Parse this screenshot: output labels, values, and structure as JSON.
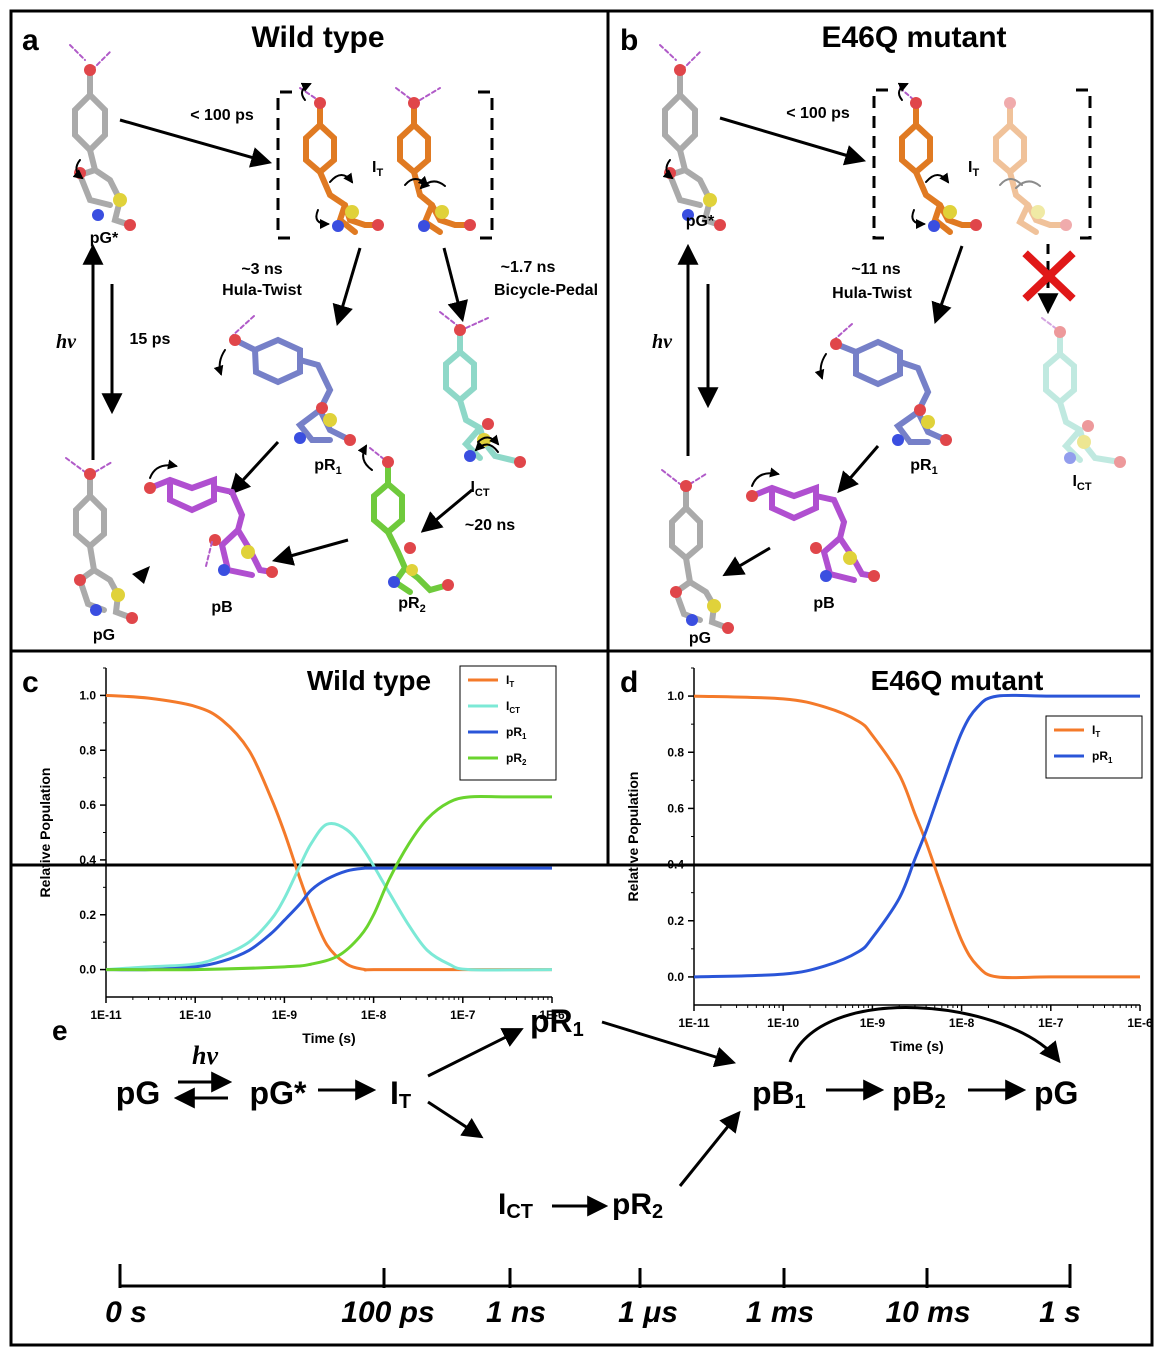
{
  "panels": {
    "a": {
      "letter": "a",
      "title": "Wild type"
    },
    "b": {
      "letter": "b",
      "title": "E46Q mutant"
    },
    "c": {
      "letter": "c"
    },
    "d": {
      "letter": "d"
    },
    "e": {
      "letter": "e"
    }
  },
  "scheme_a": {
    "hv": "hν",
    "t_fast": "< 100 ps",
    "t_15": "15 ps",
    "t_hula": "~3 ns",
    "hula": "Hula-Twist",
    "t_bp": "~1.7 ns",
    "bp": "Bicycle-Pedal",
    "t_20": "~20 ns",
    "species": {
      "pG_star": "pG*",
      "IT": "I",
      "IT_sub": "T",
      "ICT": "I",
      "ICT_sub": "CT",
      "pR1": "pR",
      "pR1_sub": "1",
      "pR2": "pR",
      "pR2_sub": "2",
      "pB": "pB",
      "pG": "pG"
    }
  },
  "scheme_b": {
    "hv": "hν",
    "t_fast": "< 100 ps",
    "t_hula": "~11 ns",
    "hula": "Hula-Twist",
    "species": {
      "pG_star": "pG*",
      "IT": "I",
      "IT_sub": "T",
      "ICT": "I",
      "ICT_sub": "CT",
      "pR1": "pR",
      "pR1_sub": "1",
      "pB": "pB",
      "pG": "pG"
    }
  },
  "colors": {
    "IT": "#f47a2a",
    "ICT": "#7ce9d6",
    "pR1": "#2a55d8",
    "pR2": "#6ad42e",
    "pB_mol": "#b04fd0",
    "pR1_mol": "#7680c8",
    "IT_mol": "#e07a22",
    "pR2_mol": "#6fca3c",
    "ICT_mol": "#8ed8c8",
    "pG_mol": "#c8c8c8",
    "red_x": "#e01818"
  },
  "chart_data": [
    {
      "type": "line",
      "panel": "c",
      "title": "Wild type",
      "xlabel": "Time (s)",
      "ylabel": "Relative Population",
      "xscale": "log",
      "xlim": [
        1e-11,
        1e-06
      ],
      "ylim": [
        -0.1,
        1.1
      ],
      "xticks": [
        "1E-11",
        "1E-10",
        "1E-9",
        "1E-8",
        "1E-7",
        "1E-6"
      ],
      "yticks": [
        "0.0",
        "0.2",
        "0.4",
        "0.6",
        "0.8",
        "1.0"
      ],
      "legend_position": "top-right",
      "series": [
        {
          "name": "I",
          "sub": "T",
          "color": "#f47a2a",
          "x": [
            1e-11,
            3e-11,
            1e-10,
            2e-10,
            4e-10,
            7e-10,
            1e-09,
            1.5e-09,
            2e-09,
            3e-09,
            5e-09,
            8e-09,
            1e-08,
            1e-07,
            1e-06
          ],
          "y": [
            1.0,
            0.99,
            0.96,
            0.91,
            0.8,
            0.63,
            0.5,
            0.33,
            0.22,
            0.09,
            0.02,
            0.0,
            0.0,
            0.0,
            0.0
          ]
        },
        {
          "name": "I",
          "sub": "CT",
          "color": "#7ce9d6",
          "x": [
            1e-11,
            3e-11,
            1e-10,
            2e-10,
            4e-10,
            7e-10,
            1e-09,
            1.5e-09,
            2e-09,
            3e-09,
            5e-09,
            8e-09,
            1.5e-08,
            2.5e-08,
            4e-08,
            7e-08,
            1.2e-07,
            1e-06
          ],
          "y": [
            0.0,
            0.01,
            0.02,
            0.05,
            0.1,
            0.18,
            0.26,
            0.38,
            0.46,
            0.53,
            0.51,
            0.43,
            0.28,
            0.16,
            0.07,
            0.02,
            0.0,
            0.0
          ]
        },
        {
          "name": "pR",
          "sub": "1",
          "color": "#2a55d8",
          "x": [
            1e-11,
            3e-11,
            1e-10,
            2e-10,
            4e-10,
            7e-10,
            1e-09,
            1.5e-09,
            2e-09,
            3e-09,
            5e-09,
            8e-09,
            1e-08,
            1e-07,
            1e-06
          ],
          "y": [
            0.0,
            0.0,
            0.01,
            0.03,
            0.07,
            0.13,
            0.18,
            0.24,
            0.29,
            0.33,
            0.36,
            0.37,
            0.37,
            0.37,
            0.37
          ]
        },
        {
          "name": "pR",
          "sub": "2",
          "color": "#6ad42e",
          "x": [
            1e-11,
            1e-10,
            1e-09,
            2e-09,
            4e-09,
            7e-09,
            1e-08,
            1.5e-08,
            2.5e-08,
            4e-08,
            7e-08,
            1.2e-07,
            3e-07,
            1e-06
          ],
          "y": [
            0.0,
            0.0,
            0.01,
            0.02,
            0.05,
            0.12,
            0.2,
            0.33,
            0.46,
            0.55,
            0.61,
            0.63,
            0.63,
            0.63
          ]
        }
      ]
    },
    {
      "type": "line",
      "panel": "d",
      "title": "E46Q mutant",
      "xlabel": "Time (s)",
      "ylabel": "Relative Population",
      "xscale": "log",
      "xlim": [
        1e-11,
        1e-06
      ],
      "ylim": [
        -0.1,
        1.1
      ],
      "xticks": [
        "1E-11",
        "1E-10",
        "1E-9",
        "1E-8",
        "1E-7",
        "1E-6"
      ],
      "yticks": [
        "0.0",
        "0.2",
        "0.4",
        "0.6",
        "0.8",
        "1.0"
      ],
      "legend_position": "top-right",
      "series": [
        {
          "name": "I",
          "sub": "T",
          "color": "#f47a2a",
          "x": [
            1e-11,
            1e-10,
            3e-10,
            7e-10,
            1e-09,
            2e-09,
            3e-09,
            4e-09,
            6e-09,
            1e-08,
            1.5e-08,
            2.5e-08,
            1e-07,
            1e-06
          ],
          "y": [
            1.0,
            0.99,
            0.96,
            0.91,
            0.86,
            0.72,
            0.58,
            0.48,
            0.32,
            0.13,
            0.04,
            0.0,
            0.0,
            0.0
          ]
        },
        {
          "name": "pR",
          "sub": "1",
          "color": "#2a55d8",
          "x": [
            1e-11,
            1e-10,
            3e-10,
            7e-10,
            1e-09,
            2e-09,
            3e-09,
            4e-09,
            6e-09,
            1e-08,
            1.5e-08,
            2.5e-08,
            1e-07,
            1e-06
          ],
          "y": [
            0.0,
            0.01,
            0.04,
            0.09,
            0.14,
            0.28,
            0.42,
            0.52,
            0.68,
            0.87,
            0.96,
            1.0,
            1.0,
            1.0
          ]
        }
      ]
    }
  ],
  "scheme_e": {
    "hv": "hν",
    "pG": "pG",
    "pG_star": "pG*",
    "IT": "I",
    "IT_sub": "T",
    "pR1": "pR",
    "pR1_sub": "1",
    "ICT": "I",
    "ICT_sub": "CT",
    "pR2": "pR",
    "pR2_sub": "2",
    "pB1": "pB",
    "pB1_sub": "1",
    "pB2": "pB",
    "pB2_sub": "2",
    "pG_end": "pG",
    "timeline": [
      "0 s",
      "100 ps",
      "1 ns",
      "1 μs",
      "1 ms",
      "10 ms",
      "1 s"
    ]
  }
}
